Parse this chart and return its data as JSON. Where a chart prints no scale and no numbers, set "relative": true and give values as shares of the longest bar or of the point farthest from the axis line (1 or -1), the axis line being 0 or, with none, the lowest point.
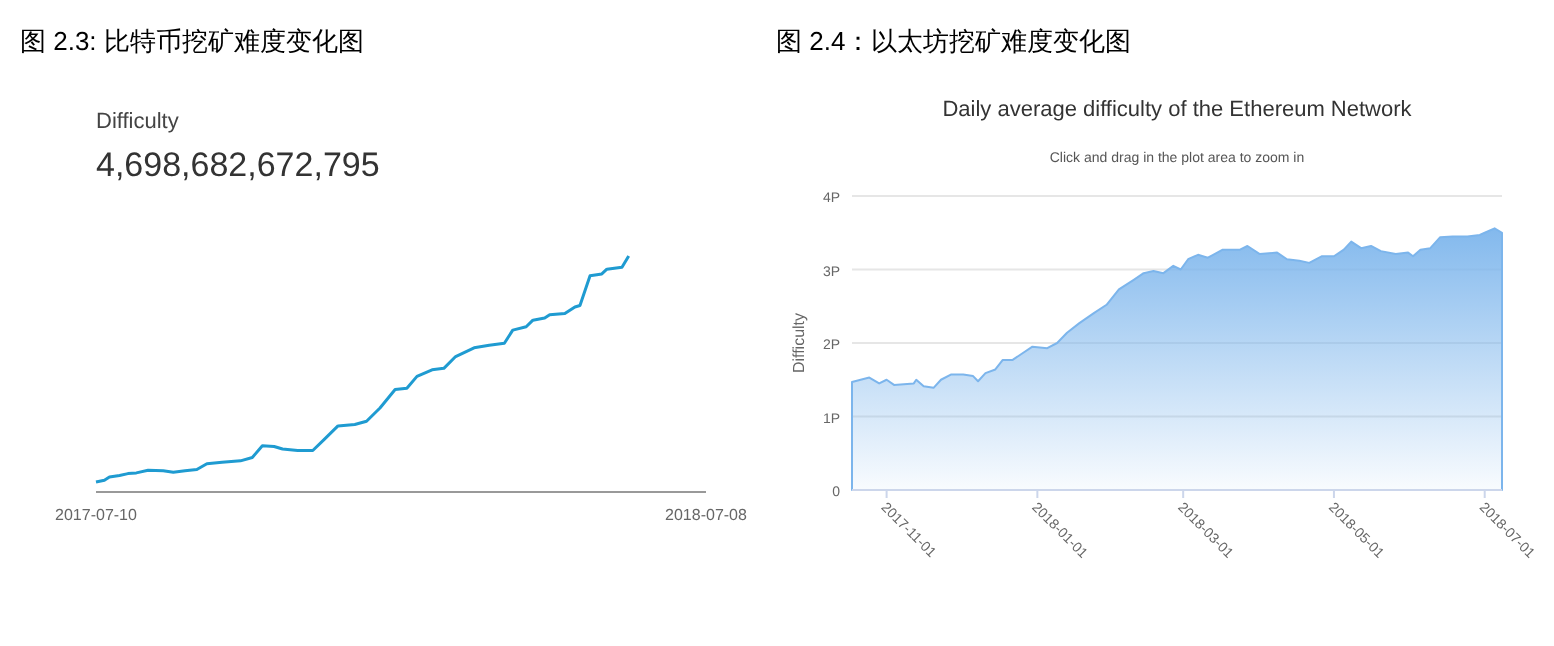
{
  "chart_data": [
    {
      "type": "line",
      "title": "图 2.3: 比特币挖矿难度变化图",
      "subtitle": "Difficulty",
      "annotations": [
        "4,698,682,672,795"
      ],
      "relative": true,
      "tick_labels": "x",
      "xlim": [
        "2017-07-10",
        "2018-07-08"
      ],
      "xticks": [
        "2017-07-10",
        "2018-07-08"
      ],
      "x": [
        "2017-07-10",
        "2017-07-15",
        "2017-07-18",
        "2017-07-24",
        "2017-07-29",
        "2017-08-03",
        "2017-08-10",
        "2017-08-19",
        "2017-08-25",
        "2017-09-01",
        "2017-09-08",
        "2017-09-14",
        "2017-09-23",
        "2017-10-04",
        "2017-10-11",
        "2017-10-17",
        "2017-10-24",
        "2017-10-29",
        "2017-11-07",
        "2017-11-16",
        "2017-11-23",
        "2017-12-01",
        "2017-12-11",
        "2017-12-18",
        "2017-12-26",
        "2018-01-04",
        "2018-01-11",
        "2018-01-17",
        "2018-01-26",
        "2018-02-02",
        "2018-02-09",
        "2018-02-20",
        "2018-03-01",
        "2018-03-10",
        "2018-03-15",
        "2018-03-23",
        "2018-03-27",
        "2018-04-03",
        "2018-04-06",
        "2018-04-15",
        "2018-04-21",
        "2018-04-24",
        "2018-04-30",
        "2018-05-07",
        "2018-05-10",
        "2018-05-19",
        "2018-05-23"
      ],
      "series": [
        {
          "color": "#1f9bd1",
          "values": [
            0.042,
            0.05,
            0.064,
            0.07,
            0.078,
            0.081,
            0.092,
            0.09,
            0.084,
            0.09,
            0.095,
            0.12,
            0.126,
            0.132,
            0.146,
            0.196,
            0.193,
            0.182,
            0.176,
            0.176,
            0.224,
            0.28,
            0.286,
            0.3,
            0.356,
            0.434,
            0.44,
            0.49,
            0.518,
            0.524,
            0.574,
            0.611,
            0.622,
            0.63,
            0.686,
            0.7,
            0.728,
            0.737,
            0.751,
            0.756,
            0.784,
            0.79,
            0.916,
            0.924,
            0.944,
            0.952,
            1
          ]
        }
      ]
    },
    {
      "type": "area",
      "title": "图 2.4：以太坊挖矿难度变化图",
      "subtitle": "Daily average difficulty of the Ethereum Network",
      "annotations": [
        "Click and drag in the plot area to zoom in"
      ],
      "ylabel": "Difficulty",
      "grid": "y",
      "ylim": [
        0,
        4
      ],
      "yticks": [
        0,
        {
          "value": 1,
          "label": "1P"
        },
        {
          "value": 2,
          "label": "2P"
        },
        {
          "value": 3,
          "label": "3P"
        },
        {
          "value": 4,
          "label": "4P"
        }
      ],
      "xlim": [
        "2017-10-18",
        "2018-07-08"
      ],
      "xticks": [
        "2017-11-01",
        "2018-01-01",
        "2018-03-01",
        "2018-05-01",
        "2018-07-01"
      ],
      "x": [
        "2017-10-18",
        "2017-10-25",
        "2017-10-29",
        "2017-11-01",
        "2017-11-04",
        "2017-11-12",
        "2017-11-13",
        "2017-11-16",
        "2017-11-20",
        "2017-11-23",
        "2017-11-27",
        "2017-12-02",
        "2017-12-06",
        "2017-12-08",
        "2017-12-11",
        "2017-12-15",
        "2017-12-18",
        "2017-12-22",
        "2017-12-26",
        "2017-12-30",
        "2018-01-05",
        "2018-01-09",
        "2018-01-13",
        "2018-01-18",
        "2018-01-24",
        "2018-01-29",
        "2018-02-03",
        "2018-02-09",
        "2018-02-13",
        "2018-02-17",
        "2018-02-21",
        "2018-02-25",
        "2018-02-28",
        "2018-03-03",
        "2018-03-07",
        "2018-03-11",
        "2018-03-17",
        "2018-03-24",
        "2018-03-27",
        "2018-04-01",
        "2018-04-08",
        "2018-04-12",
        "2018-04-17",
        "2018-04-21",
        "2018-04-26",
        "2018-05-01",
        "2018-05-05",
        "2018-05-08",
        "2018-05-12",
        "2018-05-16",
        "2018-05-20",
        "2018-05-26",
        "2018-05-31",
        "2018-06-02",
        "2018-06-05",
        "2018-06-09",
        "2018-06-13",
        "2018-06-18",
        "2018-06-24",
        "2018-06-29",
        "2018-07-01",
        "2018-07-05",
        "2018-07-08"
      ],
      "series": [
        {
          "color": "#7cb5ec",
          "values": [
            1.47,
            1.53,
            1.45,
            1.5,
            1.43,
            1.45,
            1.5,
            1.41,
            1.39,
            1.5,
            1.57,
            1.57,
            1.55,
            1.48,
            1.59,
            1.64,
            1.77,
            1.77,
            1.86,
            1.95,
            1.93,
            2.0,
            2.14,
            2.27,
            2.41,
            2.52,
            2.73,
            2.86,
            2.95,
            2.98,
            2.95,
            3.05,
            3.0,
            3.14,
            3.2,
            3.16,
            3.27,
            3.27,
            3.32,
            3.21,
            3.23,
            3.14,
            3.12,
            3.09,
            3.18,
            3.18,
            3.27,
            3.38,
            3.29,
            3.32,
            3.25,
            3.21,
            3.23,
            3.18,
            3.27,
            3.29,
            3.44,
            3.45,
            3.45,
            3.47,
            3.5,
            3.56,
            3.5
          ]
        }
      ]
    }
  ]
}
